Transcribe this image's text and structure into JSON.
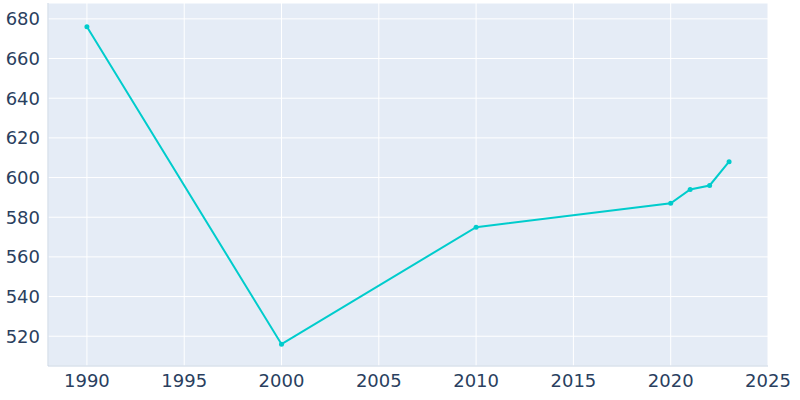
{
  "chart_data": {
    "type": "line",
    "x": [
      1990,
      2000,
      2010,
      2020,
      2021,
      2022,
      2023
    ],
    "values": [
      676,
      516,
      575,
      587,
      594,
      596,
      608
    ],
    "color": "#00cccc",
    "marker": "circle",
    "xlim": [
      1988,
      2025
    ],
    "xticks": [
      1990,
      1995,
      2000,
      2005,
      2010,
      2015,
      2020,
      2025
    ],
    "ylim": [
      505,
      688
    ],
    "yticks": [
      520,
      540,
      560,
      580,
      600,
      620,
      640,
      660,
      680
    ],
    "grid": true
  }
}
